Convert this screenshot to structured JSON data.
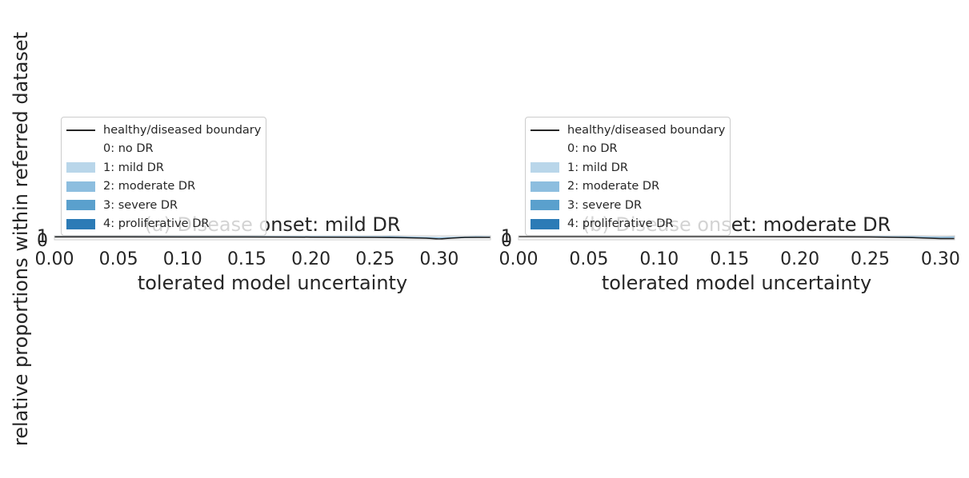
{
  "figure": {
    "ylabel": "relative proportions within referred dataset"
  },
  "chart_data": [
    {
      "type": "area",
      "title": "(a) Disease onset: mild DR",
      "xlabel": "tolerated model uncertainty",
      "ylabel": "relative proportions within referred dataset",
      "xlim": [
        0.0,
        0.34
      ],
      "ylim": [
        0,
        1
      ],
      "xticks": [
        "0.00",
        "0.05",
        "0.10",
        "0.15",
        "0.20",
        "0.25",
        "0.30"
      ],
      "yticks": [
        "0",
        "1"
      ],
      "grid": false,
      "legend_position": "upper-left",
      "legend": [
        {
          "name": "healthy/diseased boundary",
          "kind": "line",
          "color": "#1a1a1a"
        },
        {
          "name": "0: no DR",
          "kind": "patch",
          "color": "#ffffff"
        },
        {
          "name": "1: mild DR",
          "kind": "patch",
          "color": "#b9d6ea"
        },
        {
          "name": "2: moderate DR",
          "kind": "patch",
          "color": "#8dbedf"
        },
        {
          "name": "3: severe DR",
          "kind": "patch",
          "color": "#5aa0cd"
        },
        {
          "name": "4: proliferative DR",
          "kind": "patch",
          "color": "#2c7bb6"
        }
      ],
      "boundary": {
        "x": [
          0.0,
          0.05,
          0.1,
          0.15,
          0.2,
          0.25,
          0.27,
          0.29,
          0.3,
          0.31,
          0.32,
          0.34
        ],
        "y": [
          0.72,
          0.72,
          0.71,
          0.69,
          0.66,
          0.6,
          0.52,
          0.4,
          0.2,
          0.42,
          0.6,
          0.6
        ]
      },
      "series": [
        {
          "name": "1: mild DR",
          "x": [
            0.0,
            0.1,
            0.2,
            0.25,
            0.3,
            0.34
          ],
          "values": [
            0.05,
            0.06,
            0.1,
            0.14,
            0.2,
            0.3
          ]
        },
        {
          "name": "2: moderate DR",
          "x": [
            0.0,
            0.1,
            0.2,
            0.25,
            0.3,
            0.34
          ],
          "values": [
            0.13,
            0.13,
            0.14,
            0.15,
            0.12,
            0.06
          ]
        },
        {
          "name": "3: severe DR",
          "x": [
            0.0,
            0.1,
            0.2,
            0.25,
            0.3,
            0.34
          ],
          "values": [
            0.03,
            0.03,
            0.03,
            0.04,
            0.05,
            0.06
          ]
        },
        {
          "name": "4: proliferative DR",
          "x": [
            0.0,
            0.1,
            0.2,
            0.25,
            0.3,
            0.34
          ],
          "values": [
            0.04,
            0.04,
            0.04,
            0.05,
            0.06,
            0.06
          ]
        }
      ]
    },
    {
      "type": "area",
      "title": "(b) Disease onset: moderate DR",
      "xlabel": "tolerated model uncertainty",
      "ylabel": "",
      "xlim": [
        0.0,
        0.31
      ],
      "ylim": [
        0,
        1
      ],
      "xticks": [
        "0.00",
        "0.05",
        "0.10",
        "0.15",
        "0.20",
        "0.25",
        "0.30"
      ],
      "yticks": [
        "0",
        "1"
      ],
      "grid": false,
      "legend_position": "upper-left",
      "legend": [
        {
          "name": "healthy/diseased boundary",
          "kind": "line",
          "color": "#1a1a1a"
        },
        {
          "name": "0: no DR",
          "kind": "patch",
          "color": "#ffffff"
        },
        {
          "name": "1: mild DR",
          "kind": "patch",
          "color": "#b9d6ea"
        },
        {
          "name": "2: moderate DR",
          "kind": "patch",
          "color": "#8dbedf"
        },
        {
          "name": "3: severe DR",
          "kind": "patch",
          "color": "#5aa0cd"
        },
        {
          "name": "4: proliferative DR",
          "kind": "patch",
          "color": "#2c7bb6"
        }
      ],
      "boundary": {
        "x": [
          0.0,
          0.05,
          0.1,
          0.15,
          0.2,
          0.25,
          0.28,
          0.3,
          0.31
        ],
        "y": [
          0.81,
          0.81,
          0.8,
          0.79,
          0.76,
          0.7,
          0.55,
          0.3,
          0.3
        ]
      },
      "series": [
        {
          "name": "1: mild DR",
          "x": [
            0.0,
            0.1,
            0.2,
            0.25,
            0.3,
            0.31
          ],
          "values": [
            0.06,
            0.07,
            0.1,
            0.14,
            0.22,
            0.26
          ]
        },
        {
          "name": "2: moderate DR",
          "x": [
            0.0,
            0.1,
            0.2,
            0.25,
            0.3,
            0.31
          ],
          "values": [
            0.12,
            0.12,
            0.13,
            0.14,
            0.16,
            0.16
          ]
        },
        {
          "name": "3: severe DR",
          "x": [
            0.0,
            0.1,
            0.2,
            0.25,
            0.3,
            0.31
          ],
          "values": [
            0.03,
            0.03,
            0.03,
            0.04,
            0.05,
            0.05
          ]
        },
        {
          "name": "4: proliferative DR",
          "x": [
            0.0,
            0.1,
            0.2,
            0.25,
            0.3,
            0.31
          ],
          "values": [
            0.04,
            0.04,
            0.04,
            0.04,
            0.05,
            0.05
          ]
        }
      ]
    }
  ]
}
